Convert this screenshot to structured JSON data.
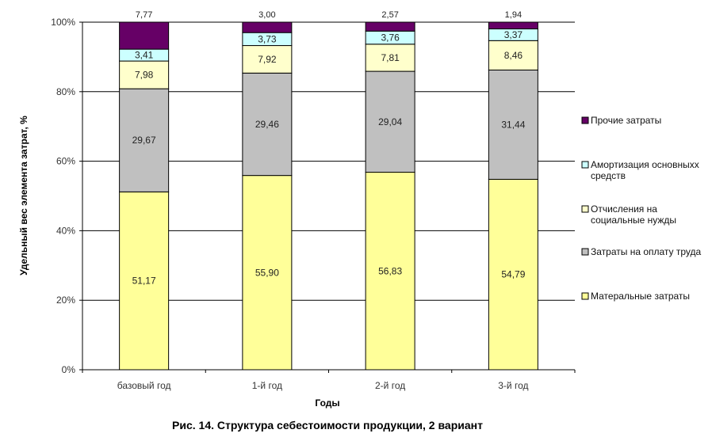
{
  "caption": "Рис. 14. Структура себестоимости продукции, 2 вариант",
  "chart_data": {
    "type": "bar",
    "stacked": true,
    "percent_stacked": true,
    "xlabel": "Годы",
    "ylabel": "Удельный вес элемента затрат, %",
    "ylim": [
      0,
      100
    ],
    "y_ticks": [
      "0%",
      "20%",
      "40%",
      "60%",
      "80%",
      "100%"
    ],
    "categories": [
      "базовый год",
      "1-й год",
      "2-й год",
      "3-й год"
    ],
    "grid": true,
    "legend_position": "right",
    "series": [
      {
        "name": "Матеральные затраты",
        "color": "#FFFF99",
        "values": [
          51.17,
          55.9,
          56.83,
          54.79
        ],
        "labels": [
          "51,17",
          "55,90",
          "56,83",
          "54,79"
        ]
      },
      {
        "name": "Затраты на оплату труда",
        "color": "#C0C0C0",
        "values": [
          29.67,
          29.46,
          29.04,
          31.44
        ],
        "labels": [
          "29,67",
          "29,46",
          "29,04",
          "31,44"
        ]
      },
      {
        "name": "Отчисления на социальные нужды",
        "color": "#FFFFCC",
        "values": [
          7.98,
          7.92,
          7.81,
          8.46
        ],
        "labels": [
          "7,98",
          "7,92",
          "7,81",
          "8,46"
        ]
      },
      {
        "name": "Амортизация основныхх средств",
        "color": "#CCFFFF",
        "values": [
          3.41,
          3.73,
          3.76,
          3.37
        ],
        "labels": [
          "3,41",
          "3,73",
          "3,76",
          "3,37"
        ]
      },
      {
        "name": "Прочие затраты",
        "color": "#660066",
        "values": [
          7.77,
          3.0,
          2.57,
          1.94
        ],
        "labels": [
          "7,77",
          "3,00",
          "2,57",
          "1,94"
        ]
      }
    ],
    "legend_order": [
      {
        "name": "Прочие затраты",
        "lines": [
          "Прочие затраты"
        ]
      },
      {
        "name": "Амортизация основныхх средств",
        "lines": [
          "Амортизация основныхх",
          "средств"
        ]
      },
      {
        "name": "Отчисления на социальные нужды",
        "lines": [
          "Отчисления на",
          "социальные нужды"
        ]
      },
      {
        "name": "Затраты на оплату труда",
        "lines": [
          "Затраты на оплату труда"
        ]
      },
      {
        "name": "Матеральные затраты",
        "lines": [
          "Матеральные затраты"
        ]
      }
    ]
  }
}
